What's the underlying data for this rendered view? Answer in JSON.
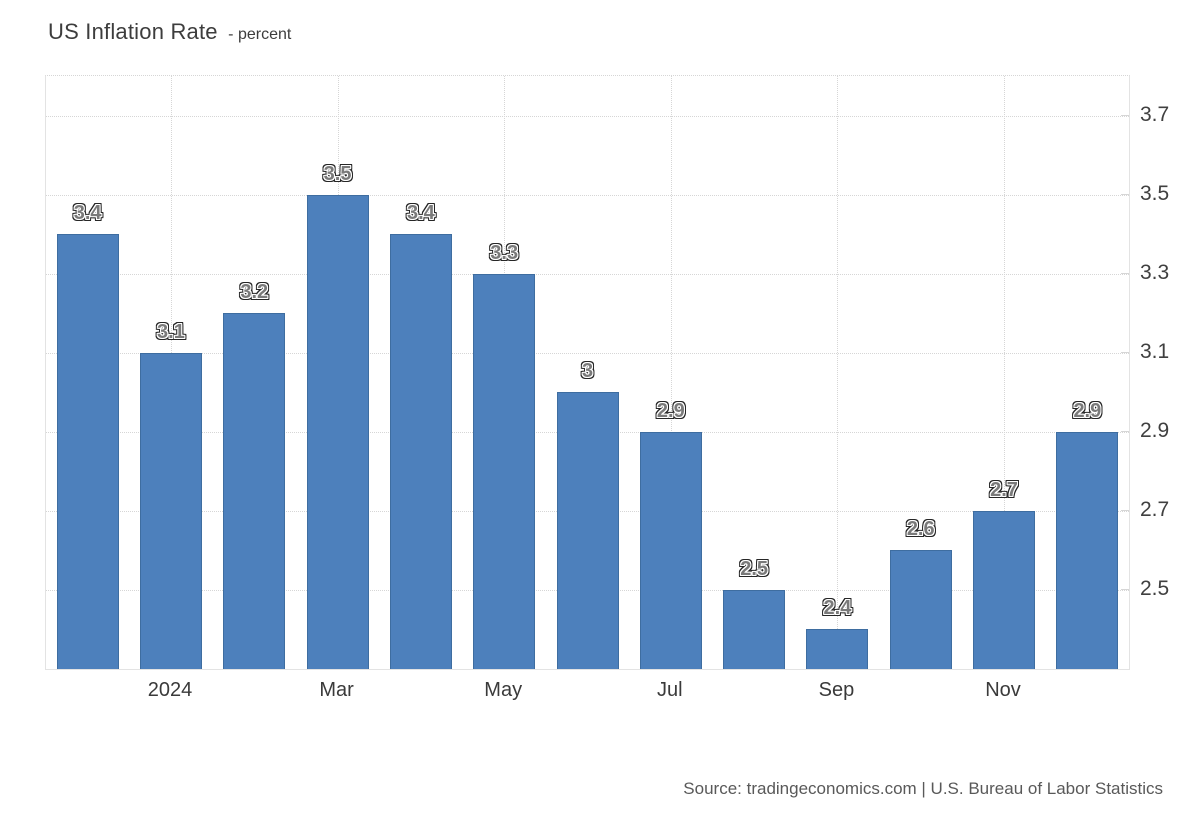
{
  "header": {
    "title": "US Inflation Rate",
    "unit_suffix": "- percent"
  },
  "footer": {
    "source": "Source: tradingeconomics.com | U.S. Bureau of Labor Statistics"
  },
  "colors": {
    "bar_fill": "#4d80bc",
    "bar_border": "#3e6da0",
    "grid_line": "#d6d6d6",
    "plot_border": "#e3e3e3",
    "title_text": "#3d3d3d",
    "axis_label_text": "#404040",
    "x_label_text": "#3a3a3a",
    "bar_label_fill": "#7a7a7a",
    "bar_label_inner_outline": "#ffffff",
    "bar_label_outer_outline": "#262626",
    "source_text": "#595959"
  },
  "chart_data": {
    "type": "bar",
    "title": "US Inflation Rate",
    "ylabel": "percent",
    "values": [
      3.4,
      3.1,
      3.2,
      3.5,
      3.4,
      3.3,
      3,
      2.9,
      2.5,
      2.4,
      2.6,
      2.7,
      2.9
    ],
    "bar_value_labels": [
      "3.4",
      "3.1",
      "3.2",
      "3.5",
      "3.4",
      "3.3",
      "3",
      "2.9",
      "2.5",
      "2.4",
      "2.6",
      "2.7",
      "2.9"
    ],
    "x_axis_ticks": [
      {
        "bar_index": 1,
        "label": "2024"
      },
      {
        "bar_index": 3,
        "label": "Mar"
      },
      {
        "bar_index": 5,
        "label": "May"
      },
      {
        "bar_index": 7,
        "label": "Jul"
      },
      {
        "bar_index": 9,
        "label": "Sep"
      },
      {
        "bar_index": 11,
        "label": "Nov"
      }
    ],
    "y_axis_ticks": [
      "3.7",
      "3.5",
      "3.3",
      "3.1",
      "2.9",
      "2.7",
      "2.5"
    ],
    "ylim": [
      2.3,
      3.8
    ],
    "y_axis_side": "right",
    "grid": "dotted",
    "legend": "none"
  }
}
